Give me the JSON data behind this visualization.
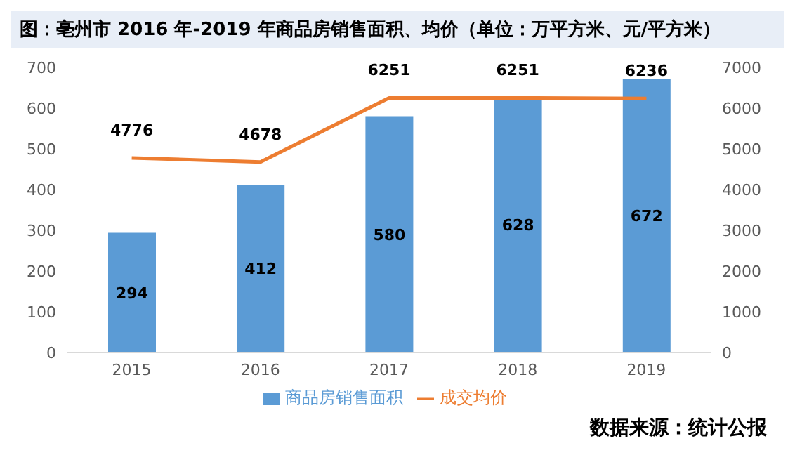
{
  "chart_data": {
    "type": "bar",
    "title": "图：亳州市 2016 年-2019 年商品房销售面积、均价（单位：万平方米、元/平方米）",
    "categories": [
      "2015",
      "2016",
      "2017",
      "2018",
      "2019"
    ],
    "series": [
      {
        "name": "商品房销售面积",
        "color": "#5b9bd5",
        "values": [
          294,
          412,
          580,
          628,
          672
        ]
      },
      {
        "name": "成交均价",
        "type": "line",
        "axis": "y2",
        "color": "#ed7d31",
        "values": [
          4776,
          4678,
          6251,
          6251,
          6236
        ]
      }
    ],
    "ylim": [
      0,
      700
    ],
    "yticks": [
      0,
      100,
      200,
      300,
      400,
      500,
      600,
      700
    ],
    "y2lim": [
      0,
      7000
    ],
    "y2ticks": [
      0,
      1000,
      2000,
      3000,
      4000,
      5000,
      6000,
      7000
    ],
    "data_labels": true,
    "grid": false,
    "legend": "bottom",
    "marker": "none",
    "line_style": "solid",
    "annotations": [
      "数据来源：统计公报"
    ]
  }
}
